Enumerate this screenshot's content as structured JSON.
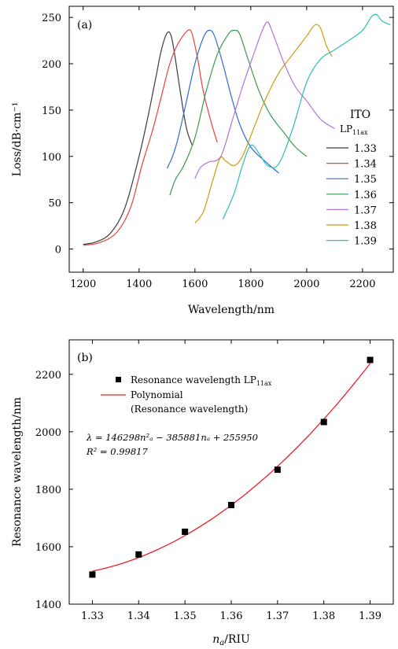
{
  "chart_data": [
    {
      "type": "line",
      "panel_label": "(a)",
      "xlabel": "Wavelength/nm",
      "ylabel": "Loss/dB·cm⁻¹",
      "xlim": [
        1150,
        2310
      ],
      "ylim": [
        -25,
        262
      ],
      "xticks": [
        1200,
        1400,
        1600,
        1800,
        2000,
        2200
      ],
      "yticks": [
        0,
        50,
        100,
        150,
        200,
        250
      ],
      "legend_position": "right",
      "legend_title": "ITO",
      "legend_subtitle": "LP",
      "legend_subtitle_sub": "11ax",
      "series": [
        {
          "name": "1.33",
          "color": "#3a3a3a",
          "points": [
            [
              1200,
              5
            ],
            [
              1250,
              8
            ],
            [
              1300,
              18
            ],
            [
              1350,
              45
            ],
            [
              1400,
              100
            ],
            [
              1430,
              140
            ],
            [
              1460,
              185
            ],
            [
              1480,
              215
            ],
            [
              1500,
              233
            ],
            [
              1515,
              230
            ],
            [
              1530,
              205
            ],
            [
              1550,
              165
            ],
            [
              1570,
              130
            ],
            [
              1590,
              112
            ]
          ]
        },
        {
          "name": "1.34",
          "color": "#e8403a",
          "points": [
            [
              1200,
              4
            ],
            [
              1260,
              7
            ],
            [
              1320,
              18
            ],
            [
              1370,
              45
            ],
            [
              1410,
              90
            ],
            [
              1450,
              130
            ],
            [
              1480,
              165
            ],
            [
              1510,
              200
            ],
            [
              1540,
              222
            ],
            [
              1575,
              236
            ],
            [
              1590,
              232
            ],
            [
              1610,
              205
            ],
            [
              1630,
              170
            ],
            [
              1660,
              135
            ],
            [
              1680,
              115
            ]
          ]
        },
        {
          "name": "1.35",
          "color": "#2f6bd3",
          "points": [
            [
              1500,
              87
            ],
            [
              1520,
              100
            ],
            [
              1540,
              120
            ],
            [
              1570,
              160
            ],
            [
              1600,
              200
            ],
            [
              1630,
              228
            ],
            [
              1650,
              236
            ],
            [
              1670,
              230
            ],
            [
              1700,
              200
            ],
            [
              1730,
              165
            ],
            [
              1760,
              135
            ],
            [
              1800,
              110
            ],
            [
              1850,
              95
            ],
            [
              1900,
              82
            ]
          ]
        },
        {
          "name": "1.36",
          "color": "#3a9a4e",
          "points": [
            [
              1510,
              58
            ],
            [
              1530,
              75
            ],
            [
              1560,
              90
            ],
            [
              1600,
              120
            ],
            [
              1640,
              170
            ],
            [
              1680,
              210
            ],
            [
              1720,
              232
            ],
            [
              1740,
              236
            ],
            [
              1760,
              232
            ],
            [
              1790,
              205
            ],
            [
              1830,
              170
            ],
            [
              1870,
              145
            ],
            [
              1920,
              125
            ],
            [
              1960,
              110
            ],
            [
              2000,
              100
            ]
          ]
        },
        {
          "name": "1.37",
          "color": "#b074d6",
          "points": [
            [
              1600,
              76
            ],
            [
              1620,
              88
            ],
            [
              1650,
              94
            ],
            [
              1680,
              96
            ],
            [
              1700,
              105
            ],
            [
              1730,
              135
            ],
            [
              1770,
              175
            ],
            [
              1810,
              210
            ],
            [
              1840,
              235
            ],
            [
              1860,
              245
            ],
            [
              1880,
              232
            ],
            [
              1920,
              200
            ],
            [
              1960,
              175
            ],
            [
              2000,
              160
            ],
            [
              2050,
              140
            ],
            [
              2100,
              130
            ]
          ]
        },
        {
          "name": "1.38",
          "color": "#cc9b14",
          "points": [
            [
              1600,
              28
            ],
            [
              1630,
              40
            ],
            [
              1660,
              70
            ],
            [
              1690,
              98
            ],
            [
              1710,
              95
            ],
            [
              1740,
              90
            ],
            [
              1770,
              100
            ],
            [
              1810,
              130
            ],
            [
              1850,
              160
            ],
            [
              1900,
              190
            ],
            [
              1950,
              210
            ],
            [
              2000,
              230
            ],
            [
              2030,
              242
            ],
            [
              2050,
              238
            ],
            [
              2070,
              220
            ],
            [
              2090,
              208
            ]
          ]
        },
        {
          "name": "1.39",
          "color": "#2dbdb4",
          "points": [
            [
              1700,
              32
            ],
            [
              1740,
              60
            ],
            [
              1770,
              90
            ],
            [
              1800,
              112
            ],
            [
              1830,
              103
            ],
            [
              1860,
              90
            ],
            [
              1900,
              92
            ],
            [
              1950,
              130
            ],
            [
              2000,
              180
            ],
            [
              2050,
              205
            ],
            [
              2100,
              215
            ],
            [
              2150,
              225
            ],
            [
              2200,
              236
            ],
            [
              2230,
              250
            ],
            [
              2250,
              253
            ],
            [
              2270,
              246
            ],
            [
              2300,
              242
            ]
          ]
        }
      ]
    },
    {
      "type": "scatter",
      "panel_label": "(b)",
      "xlabel_var": "n",
      "xlabel_sub": "a",
      "xlabel_unit": "/RIU",
      "ylabel": "Resonance wavelength/nm",
      "xlim": [
        1.325,
        1.395
      ],
      "ylim": [
        1400,
        2320
      ],
      "xticks": [
        1.33,
        1.34,
        1.35,
        1.36,
        1.37,
        1.38,
        1.39
      ],
      "yticks": [
        1400,
        1600,
        1800,
        2000,
        2200
      ],
      "legend_position": "top-left",
      "scatter_legend": "Resonance wavelength LP",
      "scatter_legend_sub": "11ax",
      "fit_legend": "Polynomial",
      "fit_legend_2": "(Resonance wavelength)",
      "x": [
        1.33,
        1.34,
        1.35,
        1.36,
        1.37,
        1.38,
        1.39
      ],
      "y": [
        1503,
        1573,
        1652,
        1745,
        1868,
        2034,
        2250
      ],
      "fit_coefficients": [
        146298,
        -385881,
        255950
      ],
      "equation": "λ = 146298n²ₐ − 385881nₐ + 255950",
      "r2_label": "R² = 0.99817",
      "marker_color": "#000000",
      "fit_color": "#e8202a"
    }
  ]
}
